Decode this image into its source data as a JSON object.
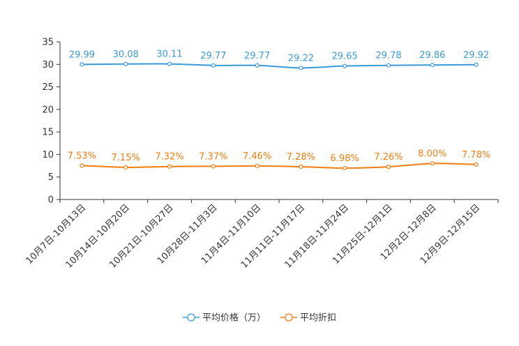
{
  "chart_data": {
    "type": "line",
    "categories": [
      "10月7日-10月13日",
      "10月14日-10月20日",
      "10月21日-10月27日",
      "10月28日-11月3日",
      "11月4日-11月10日",
      "11月11日-11月17日",
      "11月18日-11月24日",
      "11月25日-12月1日",
      "12月2日-12月8日",
      "12月9日-12月15日"
    ],
    "ylim": [
      0,
      35
    ],
    "yticks": [
      0,
      5,
      10,
      15,
      20,
      25,
      30,
      35
    ],
    "series": [
      {
        "name": "平均价格（万）",
        "color": "#3a9ad9",
        "values": [
          29.99,
          30.08,
          30.11,
          29.77,
          29.77,
          29.22,
          29.65,
          29.78,
          29.86,
          29.92
        ],
        "labels": [
          "29.99",
          "30.08",
          "30.11",
          "29.77",
          "29.77",
          "29.22",
          "29.65",
          "29.78",
          "29.86",
          "29.92"
        ]
      },
      {
        "name": "平均折扣",
        "color": "#f07d10",
        "values": [
          7.53,
          7.15,
          7.32,
          7.37,
          7.46,
          7.28,
          6.98,
          7.26,
          8.0,
          7.78
        ],
        "labels": [
          "7.53%",
          "7.15%",
          "7.32%",
          "7.37%",
          "7.46%",
          "7.28%",
          "6.98%",
          "7.26%",
          "8.00%",
          "7.78%"
        ]
      }
    ],
    "legend_position": "bottom-center"
  }
}
